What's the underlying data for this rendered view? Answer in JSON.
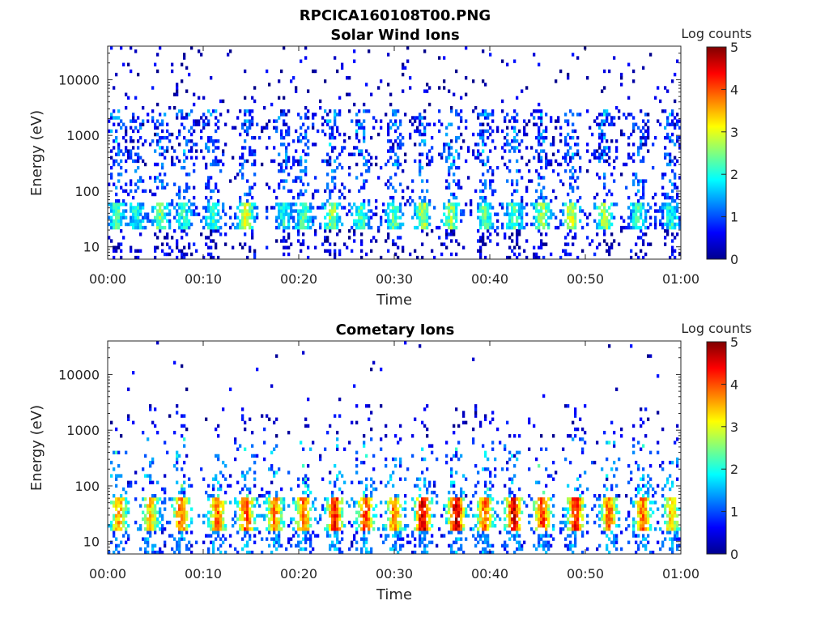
{
  "figure": {
    "title": "RPCICA160108T00.PNG"
  },
  "chart_data": [
    {
      "type": "heatmap",
      "title": "Solar Wind Ions",
      "xlabel": "Time",
      "ylabel": "Energy (eV)",
      "x_range": [
        "00:00",
        "01:00"
      ],
      "x_ticks": [
        "00:00",
        "00:10",
        "00:20",
        "00:30",
        "00:40",
        "00:50",
        "01:00"
      ],
      "y_scale": "log",
      "y_range": [
        6,
        40000
      ],
      "y_ticks": [
        "10",
        "100",
        "1000",
        "10000"
      ],
      "colorbar": {
        "label": "Log counts",
        "range": [
          0,
          5
        ],
        "ticks": [
          "0",
          "1",
          "2",
          "3",
          "4",
          "5"
        ],
        "colormap": "jet"
      },
      "low_energy_bursts": [
        {
          "t_min": 1.0,
          "level": 1.6
        },
        {
          "t_min": 3.0,
          "level": 1.3
        },
        {
          "t_min": 5.5,
          "level": 1.8
        },
        {
          "t_min": 8.0,
          "level": 1.4
        },
        {
          "t_min": 11.0,
          "level": 1.5
        },
        {
          "t_min": 14.5,
          "level": 2.3
        },
        {
          "t_min": 18.5,
          "level": 1.4
        },
        {
          "t_min": 20.5,
          "level": 1.6
        },
        {
          "t_min": 23.5,
          "level": 2.0
        },
        {
          "t_min": 26.5,
          "level": 1.7
        },
        {
          "t_min": 30.0,
          "level": 1.6
        },
        {
          "t_min": 33.0,
          "level": 2.1
        },
        {
          "t_min": 36.0,
          "level": 2.0
        },
        {
          "t_min": 39.5,
          "level": 1.7
        },
        {
          "t_min": 42.5,
          "level": 1.6
        },
        {
          "t_min": 45.5,
          "level": 2.0
        },
        {
          "t_min": 48.5,
          "level": 2.3
        },
        {
          "t_min": 52.0,
          "level": 2.0
        },
        {
          "t_min": 55.5,
          "level": 1.5
        },
        {
          "t_min": 59.0,
          "level": 1.4
        }
      ],
      "background_level": 1.0
    },
    {
      "type": "heatmap",
      "title": "Cometary Ions",
      "xlabel": "Time",
      "ylabel": "Energy (eV)",
      "x_range": [
        "00:00",
        "01:00"
      ],
      "x_ticks": [
        "00:00",
        "00:10",
        "00:20",
        "00:30",
        "00:40",
        "00:50",
        "01:00"
      ],
      "y_scale": "log",
      "y_range": [
        6,
        40000
      ],
      "y_ticks": [
        "10",
        "100",
        "1000",
        "10000"
      ],
      "colorbar": {
        "label": "Log counts",
        "range": [
          0,
          5
        ],
        "ticks": [
          "0",
          "1",
          "2",
          "3",
          "4",
          "5"
        ],
        "colormap": "jet"
      },
      "low_energy_bursts": [
        {
          "t_min": 1.2,
          "level": 2.7
        },
        {
          "t_min": 4.5,
          "level": 2.5
        },
        {
          "t_min": 7.7,
          "level": 3.0
        },
        {
          "t_min": 11.5,
          "level": 3.0
        },
        {
          "t_min": 14.5,
          "level": 3.2
        },
        {
          "t_min": 17.5,
          "level": 2.9
        },
        {
          "t_min": 20.5,
          "level": 3.1
        },
        {
          "t_min": 23.8,
          "level": 3.4
        },
        {
          "t_min": 27.0,
          "level": 3.3
        },
        {
          "t_min": 30.0,
          "level": 2.9
        },
        {
          "t_min": 33.0,
          "level": 3.8
        },
        {
          "t_min": 36.5,
          "level": 3.8
        },
        {
          "t_min": 39.5,
          "level": 3.0
        },
        {
          "t_min": 42.5,
          "level": 3.7
        },
        {
          "t_min": 45.5,
          "level": 3.3
        },
        {
          "t_min": 49.0,
          "level": 3.5
        },
        {
          "t_min": 52.5,
          "level": 3.0
        },
        {
          "t_min": 56.0,
          "level": 3.0
        },
        {
          "t_min": 59.0,
          "level": 2.5
        }
      ],
      "background_level": 1.2
    }
  ]
}
